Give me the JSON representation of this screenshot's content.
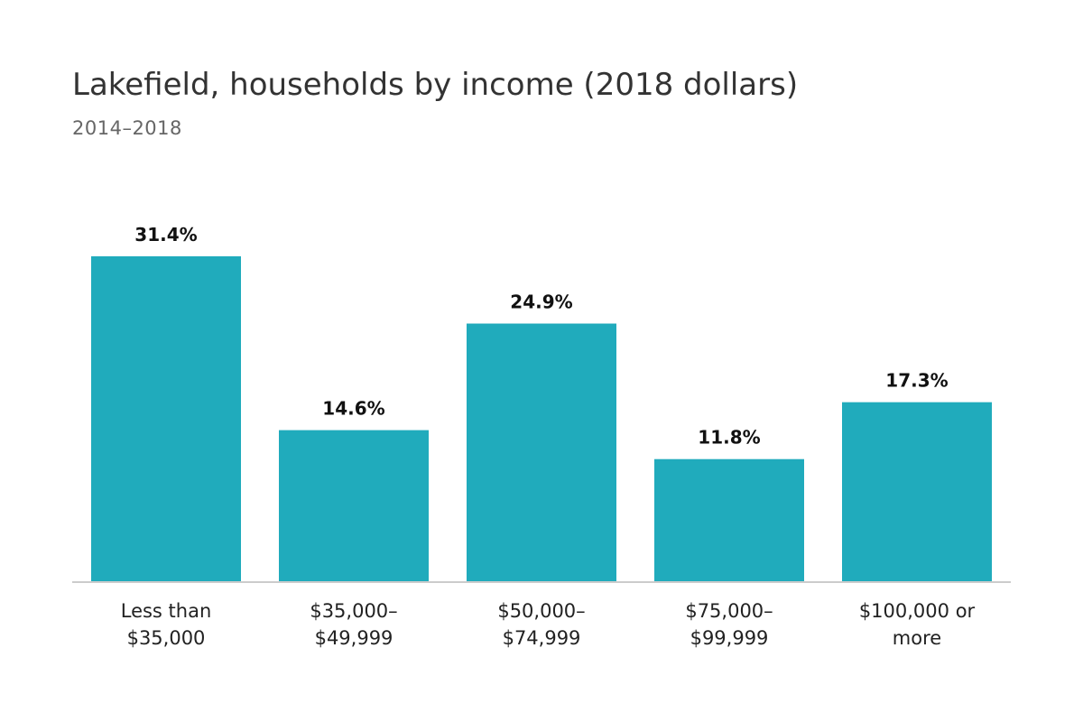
{
  "header": {
    "title": "Lakefield, households by income (2018 dollars)",
    "subtitle": "2014–2018"
  },
  "colors": {
    "bar": "#20abbc",
    "axis": "#cccccc"
  },
  "chart_data": {
    "type": "bar",
    "title": "Lakefield, households by income (2018 dollars)",
    "subtitle": "2014–2018",
    "categories": [
      [
        "Less than",
        "$35,000"
      ],
      [
        "$35,000–",
        "$49,999"
      ],
      [
        "$50,000–",
        "$74,999"
      ],
      [
        "$75,000–",
        "$99,999"
      ],
      [
        "$100,000 or",
        "more"
      ]
    ],
    "values": [
      31.4,
      14.6,
      24.9,
      11.8,
      17.3
    ],
    "value_labels": [
      "31.4%",
      "14.6%",
      "24.9%",
      "11.8%",
      "17.3%"
    ],
    "unit": "%",
    "xlabel": "",
    "ylabel": "",
    "ylim": [
      0,
      31.4
    ],
    "grid": false,
    "legend": "none"
  }
}
